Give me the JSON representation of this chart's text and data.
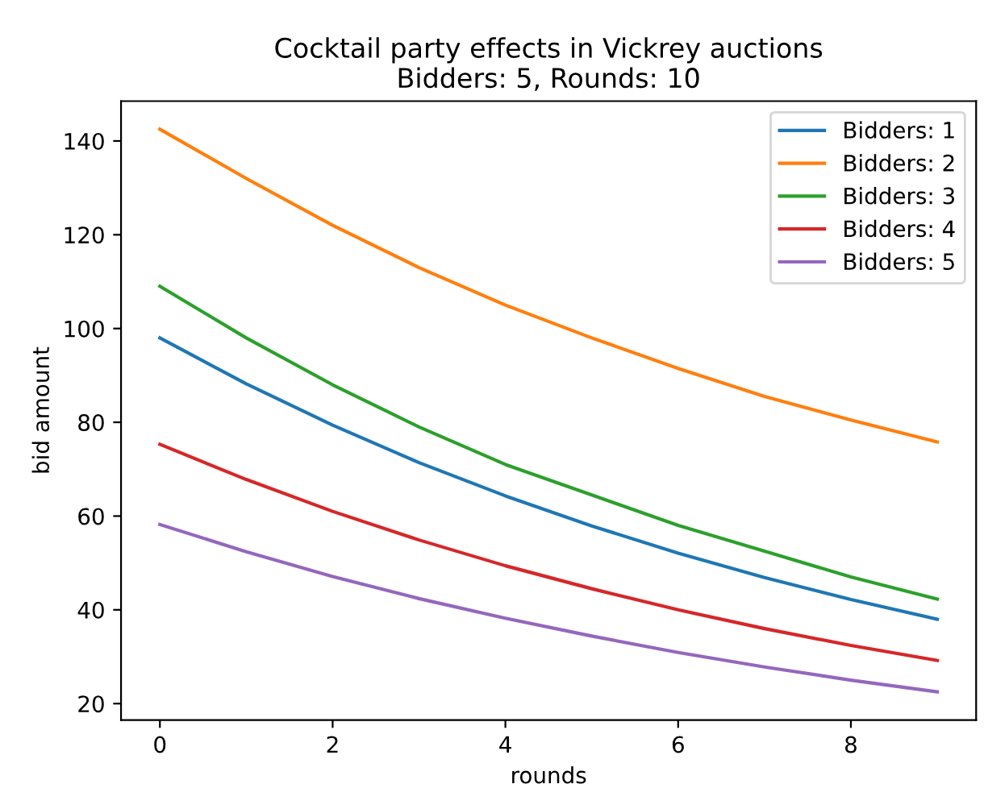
{
  "chart_data": {
    "type": "line",
    "title": "Cocktail party effects in Vickrey auctions\nBidders: 5, Rounds: 10",
    "xlabel": "rounds",
    "ylabel": "bid amount",
    "x": [
      0,
      1,
      2,
      3,
      4,
      5,
      6,
      7,
      8,
      9
    ],
    "series": [
      {
        "name": "Bidders: 1",
        "color": "#1f77b4",
        "values": [
          98,
          88.2,
          79.4,
          71.4,
          64.3,
          57.9,
          52.1,
          46.9,
          42.2,
          38.0
        ]
      },
      {
        "name": "Bidders: 2",
        "color": "#ff7f0e",
        "values": [
          142.5,
          132,
          122,
          113,
          105,
          98,
          91.5,
          85.5,
          80.5,
          75.8
        ]
      },
      {
        "name": "Bidders: 3",
        "color": "#2ca02c",
        "values": [
          109,
          98,
          88,
          79,
          71,
          64.5,
          58,
          52.5,
          47,
          42.3
        ]
      },
      {
        "name": "Bidders: 4",
        "color": "#d62728",
        "values": [
          75.3,
          67.8,
          61,
          54.9,
          49.4,
          44.5,
          40,
          36,
          32.4,
          29.2
        ]
      },
      {
        "name": "Bidders: 5",
        "color": "#9467bd",
        "values": [
          58.2,
          52.4,
          47.1,
          42.4,
          38.2,
          34.4,
          30.9,
          27.8,
          25,
          22.5
        ]
      }
    ],
    "xlim": [
      -0.45,
      9.45
    ],
    "ylim": [
      16.5,
      148.5
    ],
    "xticks": [
      0,
      2,
      4,
      6,
      8
    ],
    "yticks": [
      20,
      40,
      60,
      80,
      100,
      120,
      140
    ],
    "grid": false,
    "legend": "top right",
    "marker": "none",
    "line_style": "solid"
  }
}
